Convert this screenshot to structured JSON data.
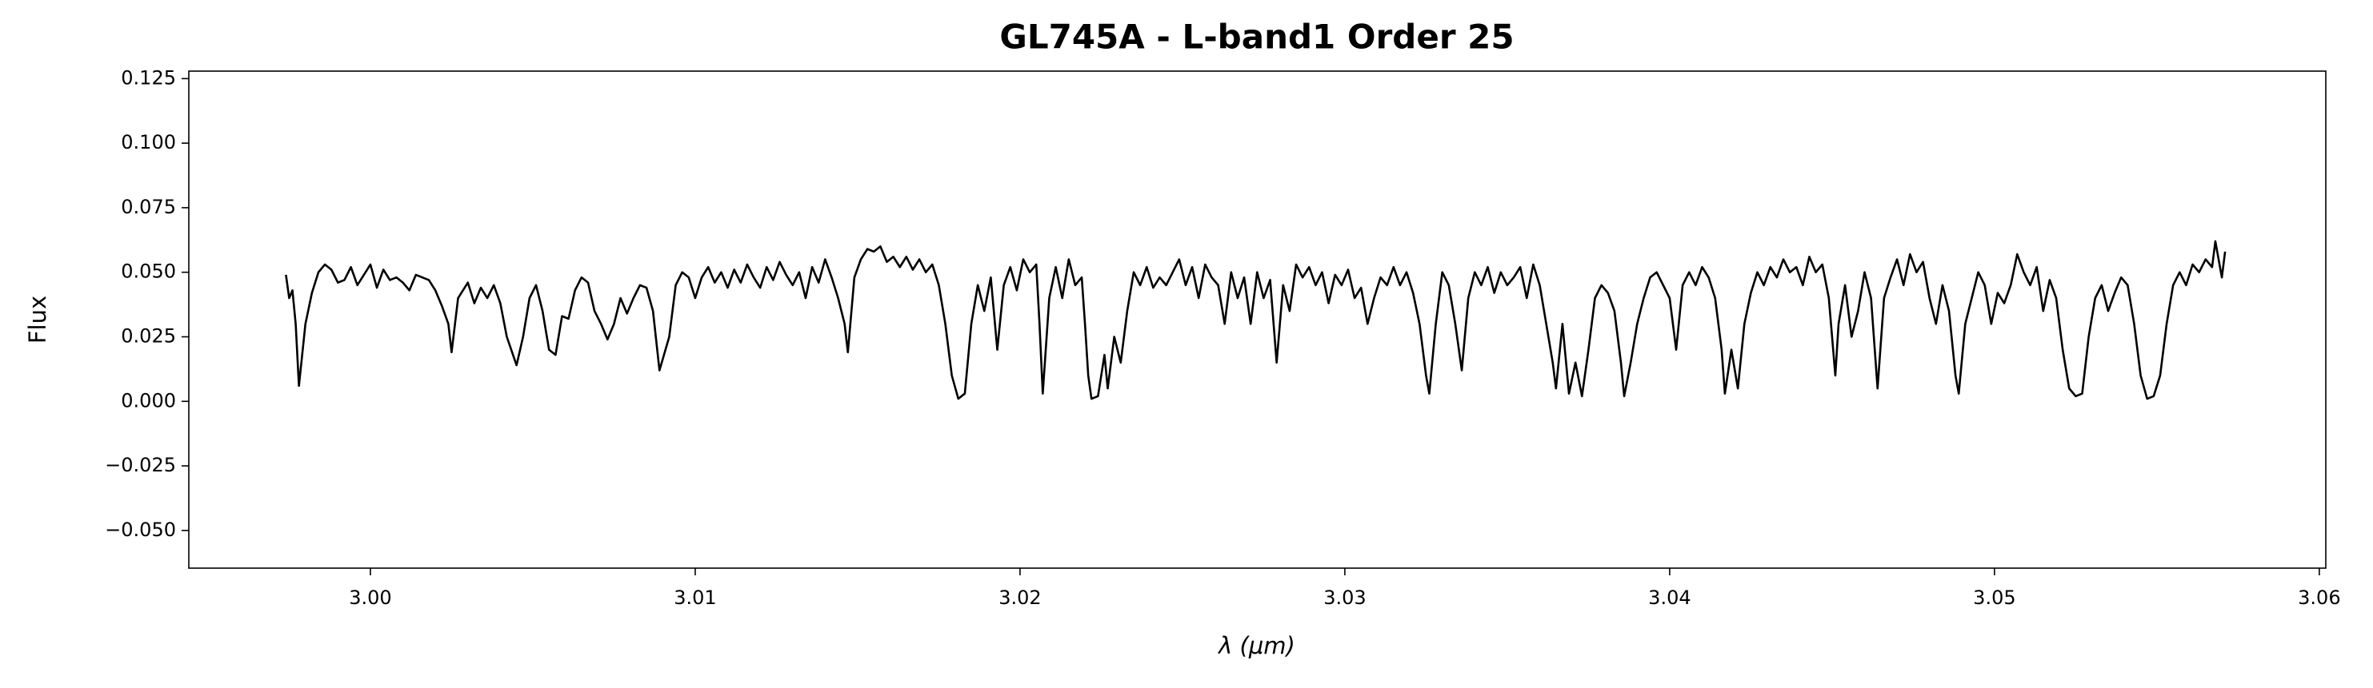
{
  "chart_data": {
    "type": "line",
    "title": "GL745A - L-band1 Order 25",
    "xlabel": "λ (μm)",
    "ylabel": "Flux",
    "xlim": [
      2.99441,
      3.0602
    ],
    "ylim": [
      -0.0646,
      0.1279
    ],
    "xticks": [
      {
        "value": 3.0,
        "label": "3.00"
      },
      {
        "value": 3.01,
        "label": "3.01"
      },
      {
        "value": 3.02,
        "label": "3.02"
      },
      {
        "value": 3.03,
        "label": "3.03"
      },
      {
        "value": 3.04,
        "label": "3.04"
      },
      {
        "value": 3.05,
        "label": "3.05"
      },
      {
        "value": 3.06,
        "label": "3.06"
      }
    ],
    "yticks": [
      {
        "value": -0.05,
        "label": "−0.050"
      },
      {
        "value": -0.025,
        "label": "−0.025"
      },
      {
        "value": 0,
        "label": "0.000"
      },
      {
        "value": 0.025,
        "label": "0.025"
      },
      {
        "value": 0.05,
        "label": "0.050"
      },
      {
        "value": 0.075,
        "label": "0.075"
      },
      {
        "value": 0.1,
        "label": "0.100"
      },
      {
        "value": 0.125,
        "label": "0.125"
      }
    ],
    "grid": false,
    "color": "#000000",
    "x": [
      2.9974,
      2.9975,
      2.9976,
      2.9977,
      2.9978,
      2.998,
      2.9982,
      2.9984,
      2.9986,
      2.9988,
      2.999,
      2.9992,
      2.9994,
      2.9996,
      2.9998,
      3.0,
      3.0002,
      3.0004,
      3.0006,
      3.0008,
      3.001,
      3.0012,
      3.0014,
      3.0016,
      3.0018,
      3.002,
      3.0022,
      3.0024,
      3.0025,
      3.0027,
      3.003,
      3.0032,
      3.0034,
      3.0036,
      3.0038,
      3.004,
      3.0042,
      3.0045,
      3.0047,
      3.0049,
      3.0051,
      3.0053,
      3.0055,
      3.0057,
      3.0059,
      3.0061,
      3.0063,
      3.0065,
      3.0067,
      3.0069,
      3.0071,
      3.0073,
      3.0075,
      3.0077,
      3.0079,
      3.0081,
      3.0083,
      3.0085,
      3.0087,
      3.0089,
      3.0092,
      3.0094,
      3.0096,
      3.0098,
      3.01,
      3.0102,
      3.0104,
      3.0106,
      3.0108,
      3.011,
      3.0112,
      3.0114,
      3.0116,
      3.0118,
      3.012,
      3.0122,
      3.0124,
      3.0126,
      3.0128,
      3.013,
      3.0132,
      3.0134,
      3.0136,
      3.0138,
      3.014,
      3.0142,
      3.0144,
      3.0146,
      3.0147,
      3.0149,
      3.0151,
      3.0153,
      3.0155,
      3.0157,
      3.0159,
      3.0161,
      3.0163,
      3.0165,
      3.0167,
      3.0169,
      3.0171,
      3.0173,
      3.0175,
      3.0177,
      3.0179,
      3.0181,
      3.0183,
      3.0185,
      3.0187,
      3.0189,
      3.0191,
      3.0193,
      3.0195,
      3.0197,
      3.0199,
      3.0201,
      3.0203,
      3.0205,
      3.0206,
      3.0207,
      3.0209,
      3.0211,
      3.0213,
      3.0215,
      3.0217,
      3.0219,
      3.022,
      3.0221,
      3.0222,
      3.0224,
      3.0226,
      3.0227,
      3.0229,
      3.0231,
      3.0233,
      3.0235,
      3.0237,
      3.0239,
      3.0241,
      3.0243,
      3.0245,
      3.0247,
      3.0249,
      3.0251,
      3.0253,
      3.0255,
      3.0257,
      3.0259,
      3.0261,
      3.0263,
      3.0265,
      3.0267,
      3.0269,
      3.0271,
      3.0273,
      3.0275,
      3.0277,
      3.0279,
      3.0281,
      3.0283,
      3.0285,
      3.0287,
      3.0289,
      3.0291,
      3.0293,
      3.0295,
      3.0297,
      3.0299,
      3.0301,
      3.0303,
      3.0305,
      3.0307,
      3.0309,
      3.0311,
      3.0313,
      3.0315,
      3.0317,
      3.0319,
      3.0321,
      3.0323,
      3.0325,
      3.0326,
      3.0328,
      3.033,
      3.0332,
      3.0334,
      3.0336,
      3.0338,
      3.034,
      3.0342,
      3.0344,
      3.0346,
      3.0348,
      3.035,
      3.0352,
      3.0354,
      3.0356,
      3.0358,
      3.036,
      3.0362,
      3.0364,
      3.0365,
      3.0367,
      3.0369,
      3.0371,
      3.0373,
      3.0375,
      3.0377,
      3.0379,
      3.0381,
      3.0383,
      3.0385,
      3.0386,
      3.0388,
      3.039,
      3.0392,
      3.0394,
      3.0396,
      3.0398,
      3.04,
      3.0402,
      3.0404,
      3.0406,
      3.0408,
      3.041,
      3.0412,
      3.0414,
      3.0416,
      3.0417,
      3.0419,
      3.0421,
      3.0423,
      3.0425,
      3.0427,
      3.0429,
      3.0431,
      3.0433,
      3.0435,
      3.0437,
      3.0439,
      3.0441,
      3.0443,
      3.0445,
      3.0447,
      3.0449,
      3.0451,
      3.0452,
      3.0454,
      3.0456,
      3.0458,
      3.046,
      3.0462,
      3.0464,
      3.0466,
      3.0468,
      3.047,
      3.0472,
      3.0474,
      3.0476,
      3.0478,
      3.048,
      3.0482,
      3.0484,
      3.0486,
      3.0488,
      3.0489,
      3.0491,
      3.0493,
      3.0495,
      3.0497,
      3.0499,
      3.0501,
      3.0503,
      3.0505,
      3.0507,
      3.0509,
      3.0511,
      3.0513,
      3.0515,
      3.0517,
      3.0519,
      3.0521,
      3.0523,
      3.0525,
      3.0527,
      3.0529,
      3.0531,
      3.0533,
      3.0535,
      3.0537,
      3.0539,
      3.0541,
      3.0543,
      3.0545,
      3.0547,
      3.0549,
      3.0551,
      3.0553,
      3.0555,
      3.0557,
      3.0559,
      3.0561,
      3.0563,
      3.0565,
      3.0567,
      3.0568,
      3.0569,
      3.057,
      3.0571
    ],
    "series": [
      {
        "name": "Flux",
        "color": "#000000",
        "values": [
          0.049,
          0.04,
          0.043,
          0.03,
          0.006,
          0.03,
          0.042,
          0.05,
          0.053,
          0.051,
          0.046,
          0.047,
          0.052,
          0.045,
          0.049,
          0.053,
          0.044,
          0.051,
          0.047,
          0.048,
          0.046,
          0.043,
          0.049,
          0.048,
          0.047,
          0.043,
          0.037,
          0.03,
          0.019,
          0.04,
          0.046,
          0.038,
          0.044,
          0.04,
          0.045,
          0.038,
          0.025,
          0.014,
          0.025,
          0.04,
          0.045,
          0.035,
          0.02,
          0.018,
          0.033,
          0.032,
          0.043,
          0.048,
          0.046,
          0.035,
          0.03,
          0.024,
          0.03,
          0.04,
          0.034,
          0.04,
          0.045,
          0.044,
          0.035,
          0.012,
          0.025,
          0.045,
          0.05,
          0.048,
          0.04,
          0.048,
          0.052,
          0.046,
          0.05,
          0.044,
          0.051,
          0.046,
          0.053,
          0.048,
          0.044,
          0.052,
          0.047,
          0.054,
          0.049,
          0.045,
          0.05,
          0.04,
          0.052,
          0.046,
          0.055,
          0.048,
          0.04,
          0.03,
          0.019,
          0.048,
          0.055,
          0.059,
          0.058,
          0.06,
          0.054,
          0.056,
          0.052,
          0.056,
          0.051,
          0.055,
          0.05,
          0.053,
          0.045,
          0.03,
          0.01,
          0.001,
          0.003,
          0.03,
          0.045,
          0.035,
          0.048,
          0.02,
          0.045,
          0.052,
          0.043,
          0.055,
          0.05,
          0.053,
          0.03,
          0.003,
          0.04,
          0.052,
          0.04,
          0.055,
          0.045,
          0.048,
          0.03,
          0.01,
          0.001,
          0.002,
          0.018,
          0.005,
          0.025,
          0.015,
          0.035,
          0.05,
          0.045,
          0.052,
          0.044,
          0.048,
          0.045,
          0.05,
          0.055,
          0.045,
          0.052,
          0.04,
          0.053,
          0.048,
          0.045,
          0.03,
          0.05,
          0.04,
          0.048,
          0.03,
          0.05,
          0.04,
          0.047,
          0.015,
          0.045,
          0.035,
          0.053,
          0.048,
          0.052,
          0.045,
          0.05,
          0.038,
          0.049,
          0.045,
          0.051,
          0.04,
          0.044,
          0.03,
          0.04,
          0.048,
          0.045,
          0.052,
          0.045,
          0.05,
          0.042,
          0.03,
          0.01,
          0.003,
          0.03,
          0.05,
          0.045,
          0.03,
          0.012,
          0.04,
          0.05,
          0.045,
          0.052,
          0.042,
          0.05,
          0.045,
          0.048,
          0.052,
          0.04,
          0.053,
          0.045,
          0.03,
          0.015,
          0.005,
          0.03,
          0.003,
          0.015,
          0.002,
          0.02,
          0.04,
          0.045,
          0.042,
          0.035,
          0.015,
          0.002,
          0.015,
          0.03,
          0.04,
          0.048,
          0.05,
          0.045,
          0.04,
          0.02,
          0.045,
          0.05,
          0.045,
          0.052,
          0.048,
          0.04,
          0.02,
          0.003,
          0.02,
          0.005,
          0.03,
          0.042,
          0.05,
          0.045,
          0.052,
          0.048,
          0.055,
          0.05,
          0.052,
          0.045,
          0.056,
          0.05,
          0.053,
          0.04,
          0.01,
          0.03,
          0.045,
          0.025,
          0.035,
          0.05,
          0.04,
          0.005,
          0.04,
          0.048,
          0.055,
          0.045,
          0.057,
          0.05,
          0.054,
          0.04,
          0.03,
          0.045,
          0.035,
          0.01,
          0.003,
          0.03,
          0.04,
          0.05,
          0.045,
          0.03,
          0.042,
          0.038,
          0.045,
          0.057,
          0.05,
          0.045,
          0.052,
          0.035,
          0.047,
          0.04,
          0.02,
          0.005,
          0.002,
          0.003,
          0.025,
          0.04,
          0.045,
          0.035,
          0.042,
          0.048,
          0.045,
          0.03,
          0.01,
          0.001,
          0.002,
          0.01,
          0.03,
          0.045,
          0.05,
          0.045,
          0.053,
          0.05,
          0.055,
          0.052,
          0.062,
          0.055,
          0.048,
          0.058
        ]
      }
    ]
  }
}
